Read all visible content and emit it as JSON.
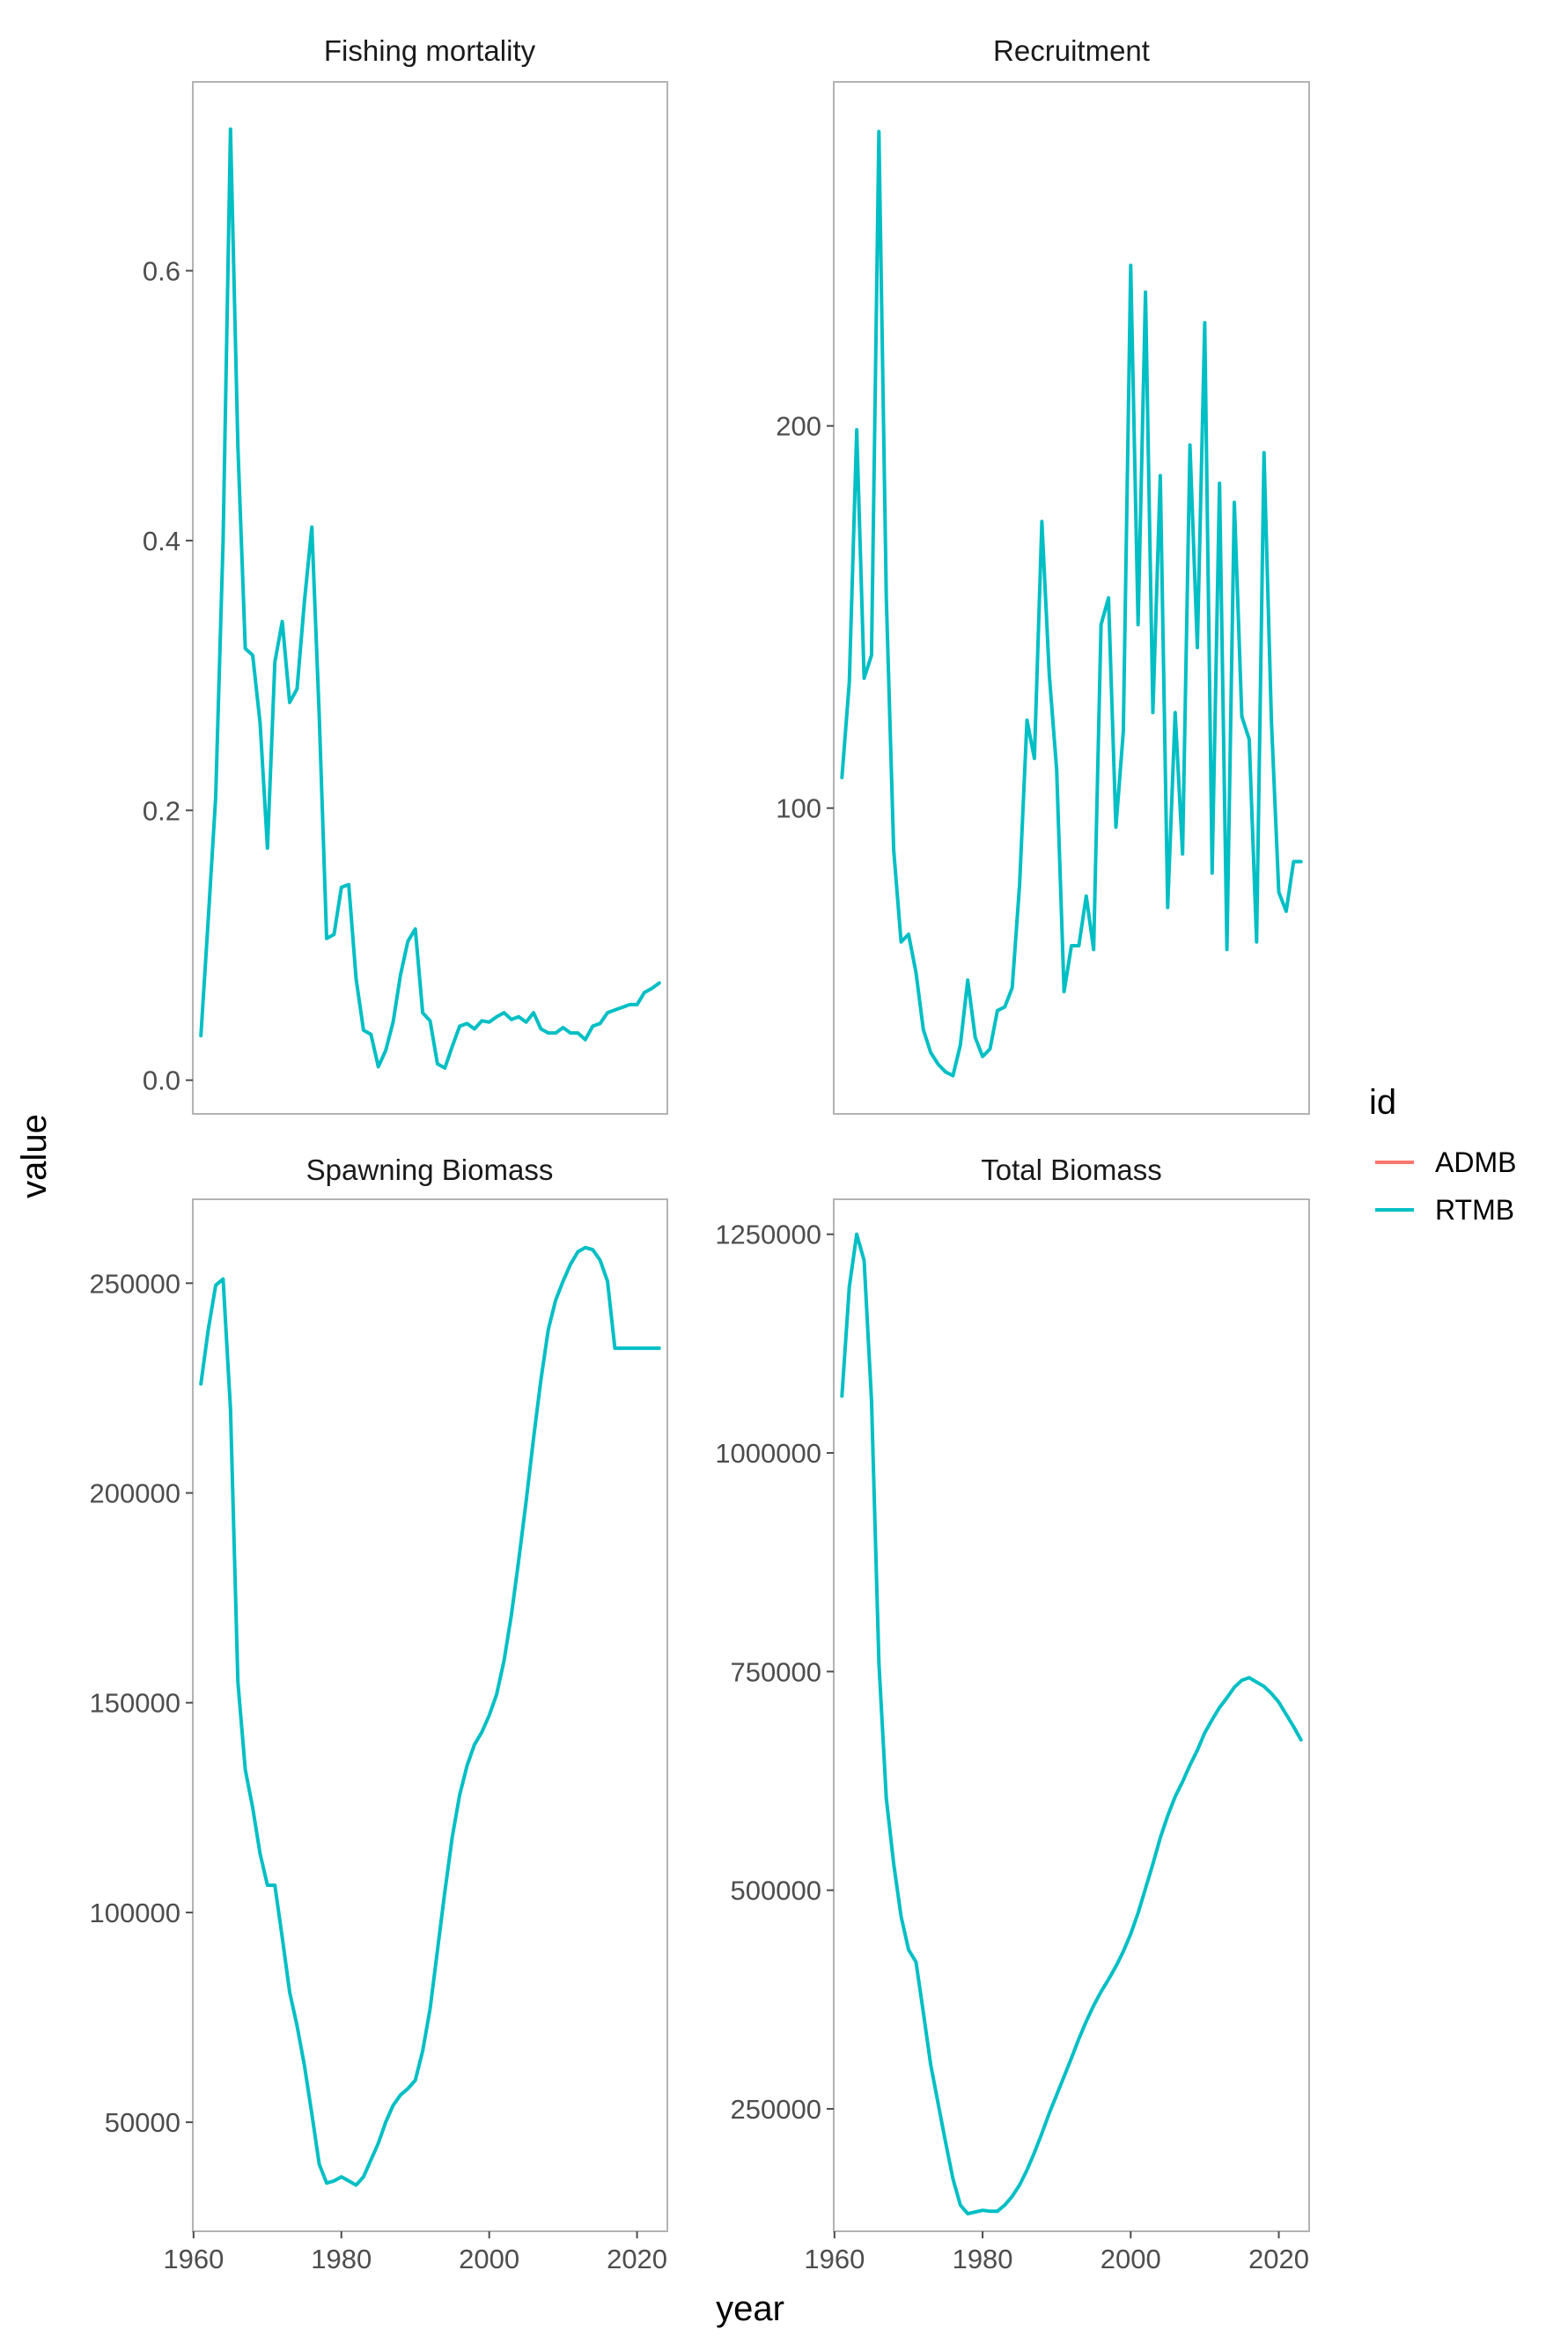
{
  "chart_data": {
    "type": "line",
    "xlabel": "year",
    "ylabel": "value",
    "legend": {
      "title": "id",
      "position": "right",
      "entries": [
        {
          "label": "ADMB",
          "color": "#F8766D"
        },
        {
          "label": "RTMB",
          "color": "#00BFC4"
        }
      ]
    },
    "x_ticks": [
      "1960",
      "1980",
      "2000",
      "2020"
    ],
    "x_tick_values": [
      1960,
      1980,
      2000,
      2020
    ],
    "xlim": [
      1959.9,
      2024.1
    ],
    "panels": [
      {
        "title": "Fishing mortality",
        "ylim": [
          -0.025,
          0.74
        ],
        "y_ticks": [
          "0.0",
          "0.2",
          "0.4",
          "0.6"
        ],
        "y_tick_values": [
          0.0,
          0.2,
          0.4,
          0.6
        ],
        "series": [
          {
            "name": "RTMB",
            "x": [
              1961,
              1962,
              1963,
              1964,
              1965,
              1966,
              1967,
              1968,
              1969,
              1970,
              1971,
              1972,
              1973,
              1974,
              1975,
              1976,
              1977,
              1978,
              1979,
              1980,
              1981,
              1982,
              1983,
              1984,
              1985,
              1986,
              1987,
              1988,
              1989,
              1990,
              1991,
              1992,
              1993,
              1994,
              1995,
              1996,
              1997,
              1998,
              1999,
              2000,
              2001,
              2002,
              2003,
              2004,
              2005,
              2006,
              2007,
              2008,
              2009,
              2010,
              2011,
              2012,
              2013,
              2014,
              2015,
              2016,
              2017,
              2018,
              2019,
              2020,
              2021,
              2022,
              2023
            ],
            "values": [
              0.033,
              0.12,
              0.21,
              0.4,
              0.705,
              0.47,
              0.32,
              0.315,
              0.265,
              0.172,
              0.31,
              0.34,
              0.28,
              0.29,
              0.355,
              0.41,
              0.27,
              0.105,
              0.108,
              0.143,
              0.145,
              0.075,
              0.037,
              0.034,
              0.01,
              0.022,
              0.043,
              0.078,
              0.103,
              0.112,
              0.05,
              0.044,
              0.012,
              0.009,
              0.025,
              0.04,
              0.042,
              0.038,
              0.044,
              0.043,
              0.047,
              0.05,
              0.045,
              0.047,
              0.043,
              0.05,
              0.038,
              0.035,
              0.035,
              0.039,
              0.035,
              0.035,
              0.03,
              0.04,
              0.042,
              0.05,
              0.052,
              0.054,
              0.056,
              0.056,
              0.065,
              0.068,
              0.072
            ]
          },
          {
            "name": "ADMB",
            "x": [],
            "values": []
          }
        ]
      },
      {
        "title": "Recruitment",
        "ylim": [
          20,
          290
        ],
        "y_ticks": [
          "100",
          "200"
        ],
        "y_tick_values": [
          100,
          200
        ],
        "series": [
          {
            "name": "RTMB",
            "x": [
              1961,
              1962,
              1963,
              1964,
              1965,
              1966,
              1967,
              1968,
              1969,
              1970,
              1971,
              1972,
              1973,
              1974,
              1975,
              1976,
              1977,
              1978,
              1979,
              1980,
              1981,
              1982,
              1983,
              1984,
              1985,
              1986,
              1987,
              1988,
              1989,
              1990,
              1991,
              1992,
              1993,
              1994,
              1995,
              1996,
              1997,
              1998,
              1999,
              2000,
              2001,
              2002,
              2003,
              2004,
              2005,
              2006,
              2007,
              2008,
              2009,
              2010,
              2011,
              2012,
              2013,
              2014,
              2015,
              2016,
              2017,
              2018,
              2019,
              2020,
              2021,
              2022,
              2023
            ],
            "values": [
              108,
              133,
              199,
              134,
              140,
              277,
              155,
              89,
              65,
              67,
              57,
              42,
              36,
              33,
              31,
              30,
              38,
              55,
              40,
              35,
              37,
              47,
              48,
              53,
              80,
              123,
              113,
              175,
              135,
              110,
              52,
              64,
              64,
              77,
              63,
              148,
              155,
              95,
              120,
              242,
              148,
              235,
              125,
              187,
              74,
              125,
              88,
              195,
              142,
              227,
              83,
              185,
              63,
              180,
              124,
              118,
              65,
              193,
              123,
              78,
              73,
              86,
              86
            ]
          },
          {
            "name": "ADMB",
            "x": [],
            "values": []
          }
        ]
      },
      {
        "title": "Spawning Biomass",
        "ylim": [
          24000,
          270000
        ],
        "y_ticks": [
          "50000",
          "100000",
          "150000",
          "200000",
          "250000"
        ],
        "y_tick_values": [
          50000,
          100000,
          150000,
          200000,
          250000
        ],
        "series": [
          {
            "name": "RTMB",
            "x": [
              1961,
              1962,
              1963,
              1964,
              1965,
              1966,
              1967,
              1968,
              1969,
              1970,
              1971,
              1972,
              1973,
              1974,
              1975,
              1976,
              1977,
              1978,
              1979,
              1980,
              1981,
              1982,
              1983,
              1984,
              1985,
              1986,
              1987,
              1988,
              1989,
              1990,
              1991,
              1992,
              1993,
              1994,
              1995,
              1996,
              1997,
              1998,
              1999,
              2000,
              2001,
              2002,
              2003,
              2004,
              2005,
              2006,
              2007,
              2008,
              2009,
              2010,
              2011,
              2012,
              2013,
              2014,
              2015,
              2016,
              2017,
              2018,
              2019,
              2020,
              2021,
              2022,
              2023
            ],
            "values": [
              226000,
              239000,
              249500,
              251000,
              220000,
              155000,
              134000,
              125000,
              114000,
              106500,
              106500,
              94000,
              81000,
              73000,
              63500,
              52000,
              40000,
              35500,
              36000,
              37000,
              36000,
              35000,
              37000,
              41000,
              45000,
              50000,
              54000,
              56500,
              58000,
              60000,
              67000,
              77000,
              91000,
              105000,
              118000,
              128000,
              135000,
              140000,
              143000,
              147000,
              152000,
              160000,
              171000,
              184000,
              198000,
              213000,
              227000,
              239000,
              246000,
              250500,
              254500,
              257500,
              258500,
              258000,
              255500,
              250500,
              234500,
              234500,
              234500,
              234500,
              234500,
              234500,
              234500
            ]
          },
          {
            "name": "ADMB",
            "x": [],
            "values": []
          }
        ]
      },
      {
        "title": "Total Biomass",
        "ylim": [
          110000,
          1290000
        ],
        "y_ticks": [
          "250000",
          "500000",
          "750000",
          "1000000",
          "1250000"
        ],
        "y_tick_values": [
          250000,
          500000,
          750000,
          1000000,
          1250000
        ],
        "series": [
          {
            "name": "RTMB",
            "x": [
              1961,
              1962,
              1963,
              1964,
              1965,
              1966,
              1967,
              1968,
              1969,
              1970,
              1971,
              1972,
              1973,
              1974,
              1975,
              1976,
              1977,
              1978,
              1979,
              1980,
              1981,
              1982,
              1983,
              1984,
              1985,
              1986,
              1987,
              1988,
              1989,
              1990,
              1991,
              1992,
              1993,
              1994,
              1995,
              1996,
              1997,
              1998,
              1999,
              2000,
              2001,
              2002,
              2003,
              2004,
              2005,
              2006,
              2007,
              2008,
              2009,
              2010,
              2011,
              2012,
              2013,
              2014,
              2015,
              2016,
              2017,
              2018,
              2019,
              2020,
              2021,
              2022,
              2023
            ],
            "values": [
              1065000,
              1190000,
              1250000,
              1220000,
              1060000,
              760000,
              605000,
              530000,
              470000,
              432000,
              418000,
              360000,
              300000,
              256000,
              212000,
              170000,
              140000,
              130000,
              132000,
              134000,
              133000,
              133000,
              140000,
              150000,
              163000,
              180000,
              200000,
              222000,
              245000,
              266000,
              287000,
              308000,
              330000,
              350000,
              368000,
              384000,
              398000,
              413000,
              430000,
              450000,
              474000,
              502000,
              530000,
              560000,
              585000,
              607000,
              624000,
              643000,
              660000,
              680000,
              695000,
              709000,
              720000,
              732000,
              740000,
              743000,
              738000,
              733000,
              725000,
              715000,
              701000,
              687000,
              672000
            ]
          },
          {
            "name": "ADMB",
            "x": [],
            "values": []
          }
        ]
      }
    ]
  }
}
